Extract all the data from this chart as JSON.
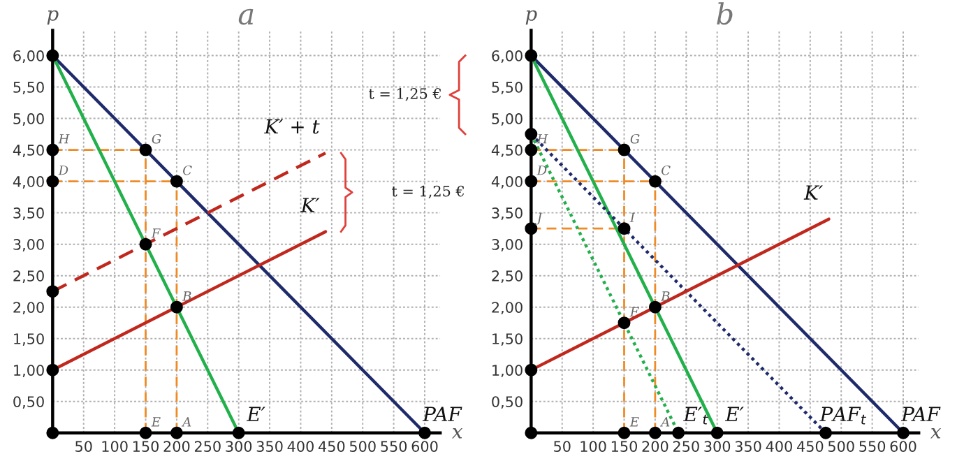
{
  "chart_data": [
    {
      "type": "line",
      "title": "a",
      "xlabel": "x",
      "ylabel": "p",
      "xlim": [
        0,
        625
      ],
      "ylim": [
        0,
        6.4
      ],
      "xticks": [
        50,
        100,
        150,
        200,
        250,
        300,
        350,
        400,
        450,
        500,
        550,
        600
      ],
      "yticks": [
        {
          "value": 0.5,
          "label": "0,50"
        },
        {
          "value": 1,
          "label": "1,00"
        },
        {
          "value": 1.5,
          "label": "1,50"
        },
        {
          "value": 2,
          "label": "2,00"
        },
        {
          "value": 2.5,
          "label": "2,50"
        },
        {
          "value": 3,
          "label": "3,00"
        },
        {
          "value": 3.5,
          "label": "3,50"
        },
        {
          "value": 4,
          "label": "4,00"
        },
        {
          "value": 4.5,
          "label": "4,50"
        },
        {
          "value": 5,
          "label": "5,00"
        },
        {
          "value": 5.5,
          "label": "5,50"
        },
        {
          "value": 6,
          "label": "6,00"
        }
      ],
      "grid": true,
      "series": [
        {
          "color": "#f08a24",
          "line_style": "dashed",
          "x": [
            0,
            150
          ],
          "values": [
            4.5,
            4.5
          ]
        },
        {
          "color": "#f08a24",
          "line_style": "dashed",
          "x": [
            0,
            200
          ],
          "values": [
            4,
            4
          ]
        },
        {
          "color": "#f08a24",
          "line_style": "dashed",
          "x": [
            150,
            150
          ],
          "values": [
            0,
            4.5
          ]
        },
        {
          "color": "#f08a24",
          "line_style": "dashed",
          "x": [
            200,
            200
          ],
          "values": [
            0,
            4
          ]
        },
        {
          "name": "PAF",
          "color": "#1f2a6b",
          "line_style": "solid",
          "x": [
            0,
            600
          ],
          "values": [
            6,
            0
          ]
        },
        {
          "name": "E′",
          "color": "#22b04b",
          "line_style": "solid",
          "x": [
            0,
            300
          ],
          "values": [
            6,
            0
          ]
        },
        {
          "name": "K′",
          "color": "#c0281e",
          "line_style": "solid",
          "x": [
            0,
            440
          ],
          "values": [
            1,
            3.2
          ]
        },
        {
          "name": "K′ + t",
          "color": "#c0281e",
          "line_style": "dashed",
          "x": [
            0,
            440
          ],
          "values": [
            2.25,
            4.45
          ]
        },
        {
          "type": "scatter",
          "color": "#000000",
          "marker": "circle",
          "x": [
            0,
            0,
            0,
            0,
            0,
            0,
            150,
            200,
            150,
            200,
            150,
            200,
            300,
            600
          ],
          "values": [
            6,
            4.5,
            4,
            2.25,
            1,
            0,
            4.5,
            4,
            3,
            2,
            0,
            0,
            0,
            0
          ]
        }
      ],
      "annotations": [
        {
          "text": "H",
          "x": 0,
          "y": 4.5
        },
        {
          "text": "D",
          "x": 0,
          "y": 4
        },
        {
          "text": "G",
          "x": 150,
          "y": 4.5
        },
        {
          "text": "C",
          "x": 200,
          "y": 4
        },
        {
          "text": "F",
          "x": 150,
          "y": 3
        },
        {
          "text": "B",
          "x": 200,
          "y": 2
        },
        {
          "text": "E",
          "x": 150,
          "y": 0
        },
        {
          "text": "A",
          "x": 200,
          "y": 0
        },
        "t = 1,25 €"
      ]
    },
    {
      "type": "line",
      "title": "b",
      "xlabel": "x",
      "ylabel": "p",
      "xlim": [
        0,
        625
      ],
      "ylim": [
        0,
        6.4
      ],
      "xticks": [
        50,
        100,
        150,
        200,
        250,
        300,
        350,
        400,
        450,
        500,
        550,
        600
      ],
      "yticks": [
        {
          "value": 0.5,
          "label": "0,50"
        },
        {
          "value": 1,
          "label": "1,00"
        },
        {
          "value": 1.5,
          "label": "1,50"
        },
        {
          "value": 2,
          "label": "2,00"
        },
        {
          "value": 2.5,
          "label": "2,50"
        },
        {
          "value": 3,
          "label": "3,00"
        },
        {
          "value": 3.5,
          "label": "3,50"
        },
        {
          "value": 4,
          "label": "4,00"
        },
        {
          "value": 4.5,
          "label": "4,50"
        },
        {
          "value": 5,
          "label": "5,00"
        },
        {
          "value": 5.5,
          "label": "5,50"
        },
        {
          "value": 6,
          "label": "6,00"
        }
      ],
      "grid": true,
      "series": [
        {
          "color": "#f08a24",
          "line_style": "dashed",
          "x": [
            0,
            150
          ],
          "values": [
            4.5,
            4.5
          ]
        },
        {
          "color": "#f08a24",
          "line_style": "dashed",
          "x": [
            0,
            200
          ],
          "values": [
            4,
            4
          ]
        },
        {
          "color": "#f08a24",
          "line_style": "dashed",
          "x": [
            0,
            150
          ],
          "values": [
            3.25,
            3.25
          ]
        },
        {
          "color": "#f08a24",
          "line_style": "dashed",
          "x": [
            150,
            150
          ],
          "values": [
            0,
            4.5
          ]
        },
        {
          "color": "#f08a24",
          "line_style": "dashed",
          "x": [
            200,
            200
          ],
          "values": [
            0,
            4
          ]
        },
        {
          "name": "PAF",
          "color": "#1f2a6b",
          "line_style": "solid",
          "x": [
            0,
            600
          ],
          "values": [
            6,
            0
          ]
        },
        {
          "name": "E′",
          "color": "#22b04b",
          "line_style": "solid",
          "x": [
            0,
            300
          ],
          "values": [
            6,
            0
          ]
        },
        {
          "name": "PAF$_{t}$",
          "color": "#1f2a6b",
          "line_style": "dotted",
          "x": [
            0,
            475
          ],
          "values": [
            4.75,
            0
          ]
        },
        {
          "name": "E′$_{t}$",
          "color": "#22b04b",
          "line_style": "dotted",
          "x": [
            0,
            237.5
          ],
          "values": [
            4.75,
            0
          ]
        },
        {
          "name": "K′",
          "color": "#c0281e",
          "line_style": "solid",
          "x": [
            0,
            480
          ],
          "values": [
            1,
            3.4
          ]
        },
        {
          "type": "scatter",
          "color": "#000000",
          "marker": "circle",
          "x": [
            0,
            0,
            0,
            0,
            0,
            0,
            0,
            150,
            200,
            150,
            200,
            150,
            150,
            200,
            237.5,
            300,
            475,
            600
          ],
          "values": [
            6,
            4.75,
            4.5,
            4,
            3.25,
            1,
            0,
            4.5,
            4,
            3.25,
            2,
            1.75,
            0,
            0,
            0,
            0,
            0,
            0
          ]
        }
      ],
      "annotations": [
        {
          "text": "H",
          "x": 0,
          "y": 4.5
        },
        {
          "text": "D",
          "x": 0,
          "y": 4
        },
        {
          "text": "J",
          "x": 0,
          "y": 3.25
        },
        {
          "text": "G",
          "x": 150,
          "y": 4.5
        },
        {
          "text": "C",
          "x": 200,
          "y": 4
        },
        {
          "text": "I",
          "x": 150,
          "y": 3.25
        },
        {
          "text": "B",
          "x": 200,
          "y": 2
        },
        {
          "text": "F",
          "x": 150,
          "y": 1.75
        },
        {
          "text": "E",
          "x": 150,
          "y": 0
        },
        {
          "text": "A",
          "x": 200,
          "y": 0
        },
        "t = 1,25 €"
      ]
    }
  ]
}
